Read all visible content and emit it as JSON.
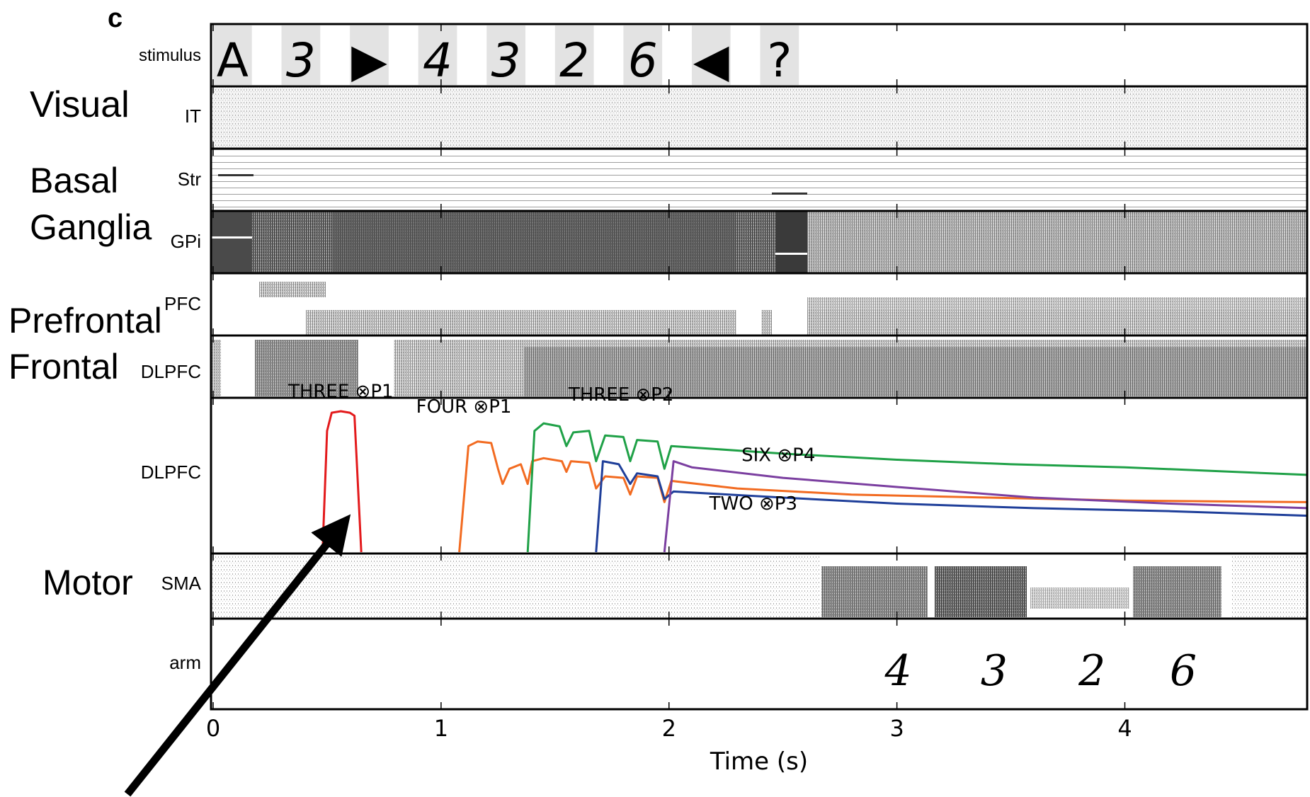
{
  "panel_letter": "c",
  "region_labels": [
    "Visual",
    "Basal",
    "Ganglia",
    "Prefrontal",
    "Frontal",
    "Motor"
  ],
  "row_labels": [
    "stimulus",
    "IT",
    "Str",
    "GPi",
    "PFC",
    "DLPFC",
    "DLPFC",
    "SMA",
    "arm"
  ],
  "stimulus_sequence": [
    {
      "symbol": "A",
      "start": 0.0,
      "end": 0.17
    },
    {
      "symbol": "3",
      "start": 0.3,
      "end": 0.47
    },
    {
      "symbol": "▶",
      "start": 0.6,
      "end": 0.77
    },
    {
      "symbol": "4",
      "start": 0.9,
      "end": 1.07
    },
    {
      "symbol": "3",
      "start": 1.2,
      "end": 1.37
    },
    {
      "symbol": "2",
      "start": 1.5,
      "end": 1.67
    },
    {
      "symbol": "6",
      "start": 1.8,
      "end": 1.97
    },
    {
      "symbol": "◀",
      "start": 2.1,
      "end": 2.27
    },
    {
      "symbol": "?",
      "start": 2.4,
      "end": 2.57
    }
  ],
  "arm_digits": [
    {
      "symbol": "4",
      "t": 3.0
    },
    {
      "symbol": "3",
      "t": 3.42
    },
    {
      "symbol": "2",
      "t": 3.85
    },
    {
      "symbol": "6",
      "t": 4.25
    }
  ],
  "chart_data": {
    "type": "line",
    "xlabel": "Time (s)",
    "xlim": [
      0,
      4.8
    ],
    "ylim": [
      0,
      1
    ],
    "xticks": [
      "0",
      "1",
      "2",
      "3",
      "4"
    ],
    "colors": {
      "red": "#e31a1c",
      "orange": "#f26b21",
      "green": "#1fa147",
      "blue": "#1f3f9a",
      "purple": "#7b3fa0",
      "arrow": "#000000"
    },
    "annotations": [
      {
        "text": "THREE ⊗P1",
        "x": 0.56,
        "y": 1.02
      },
      {
        "text": "FOUR ⊗P1",
        "x": 1.1,
        "y": 0.92
      },
      {
        "text": "THREE ⊗P2",
        "x": 1.79,
        "y": 1.0
      },
      {
        "text": "SIX ⊗P4",
        "x": 2.48,
        "y": 0.6
      },
      {
        "text": "TWO ⊗P3",
        "x": 2.37,
        "y": 0.28
      }
    ],
    "series": [
      {
        "color_key": "red",
        "points": [
          [
            0.48,
            0.0
          ],
          [
            0.5,
            0.8
          ],
          [
            0.52,
            0.92
          ],
          [
            0.56,
            0.93
          ],
          [
            0.6,
            0.92
          ],
          [
            0.62,
            0.9
          ],
          [
            0.65,
            0.0
          ]
        ]
      },
      {
        "color_key": "orange",
        "points": [
          [
            1.08,
            0.0
          ],
          [
            1.12,
            0.7
          ],
          [
            1.16,
            0.73
          ],
          [
            1.22,
            0.72
          ],
          [
            1.25,
            0.55
          ],
          [
            1.27,
            0.45
          ],
          [
            1.3,
            0.55
          ],
          [
            1.35,
            0.58
          ],
          [
            1.38,
            0.45
          ],
          [
            1.4,
            0.6
          ],
          [
            1.45,
            0.62
          ],
          [
            1.53,
            0.6
          ],
          [
            1.55,
            0.53
          ],
          [
            1.57,
            0.6
          ],
          [
            1.65,
            0.59
          ],
          [
            1.68,
            0.42
          ],
          [
            1.72,
            0.5
          ],
          [
            1.8,
            0.49
          ],
          [
            1.83,
            0.38
          ],
          [
            1.86,
            0.5
          ],
          [
            1.95,
            0.49
          ],
          [
            1.98,
            0.33
          ],
          [
            2.01,
            0.47
          ],
          [
            2.3,
            0.42
          ],
          [
            2.8,
            0.38
          ],
          [
            3.4,
            0.36
          ],
          [
            4.0,
            0.34
          ],
          [
            4.8,
            0.33
          ]
        ]
      },
      {
        "color_key": "green",
        "points": [
          [
            1.38,
            0.0
          ],
          [
            1.41,
            0.8
          ],
          [
            1.45,
            0.85
          ],
          [
            1.52,
            0.83
          ],
          [
            1.55,
            0.7
          ],
          [
            1.58,
            0.79
          ],
          [
            1.65,
            0.8
          ],
          [
            1.68,
            0.6
          ],
          [
            1.72,
            0.77
          ],
          [
            1.8,
            0.76
          ],
          [
            1.83,
            0.6
          ],
          [
            1.86,
            0.74
          ],
          [
            1.95,
            0.73
          ],
          [
            1.98,
            0.55
          ],
          [
            2.01,
            0.7
          ],
          [
            2.5,
            0.65
          ],
          [
            3.0,
            0.61
          ],
          [
            3.5,
            0.58
          ],
          [
            4.0,
            0.56
          ],
          [
            4.8,
            0.51
          ]
        ]
      },
      {
        "color_key": "blue",
        "points": [
          [
            1.68,
            0.0
          ],
          [
            1.71,
            0.6
          ],
          [
            1.78,
            0.58
          ],
          [
            1.83,
            0.45
          ],
          [
            1.86,
            0.52
          ],
          [
            1.95,
            0.5
          ],
          [
            1.98,
            0.35
          ],
          [
            2.02,
            0.4
          ],
          [
            2.5,
            0.36
          ],
          [
            3.0,
            0.32
          ],
          [
            3.6,
            0.29
          ],
          [
            4.2,
            0.27
          ],
          [
            4.8,
            0.24
          ]
        ]
      },
      {
        "color_key": "purple",
        "points": [
          [
            1.98,
            0.0
          ],
          [
            2.02,
            0.6
          ],
          [
            2.1,
            0.56
          ],
          [
            2.5,
            0.49
          ],
          [
            3.0,
            0.43
          ],
          [
            3.6,
            0.36
          ],
          [
            4.2,
            0.32
          ],
          [
            4.8,
            0.29
          ]
        ]
      }
    ]
  }
}
